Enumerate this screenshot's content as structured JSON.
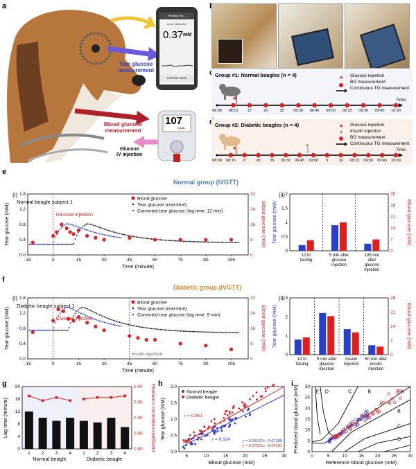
{
  "panel_letters": {
    "a": "a",
    "b": "b",
    "c": "c",
    "d": "d",
    "e": "e",
    "f": "f",
    "g": "g",
    "h": "h",
    "i": "i"
  },
  "panel_a": {
    "phone_title": "Reading Val...",
    "phone_header": "Auto Calibration",
    "phone_value": "0.37",
    "phone_unit": "mM",
    "phone_button": "EXPORT DATA",
    "tear_label_1": "Tear glucose",
    "tear_label_2": "measurement",
    "blood_label_1": "Blood glucose",
    "blood_label_2": "measurement",
    "glucose_label_1": "Glucose",
    "glucose_label_2": "IV injection",
    "meter_value": "107",
    "meter_unit": "mg/dL"
  },
  "timeline_c": {
    "title": "Group #1: Normal beagles (n = 4)",
    "legend": [
      "Glucose injection",
      "BG measurement",
      "Continuous TG measurement"
    ],
    "ticks": [
      "08:00",
      "08:15",
      "17",
      "20",
      "25",
      "06:30",
      "06:45",
      "09:00",
      "09:15",
      "09:30",
      "09:45",
      "10:00"
    ],
    "time_label": "Time"
  },
  "timeline_d": {
    "title": "Group #2: Diabetic beagles (n = 4)",
    "legend": [
      "Glucose injection",
      "Insulin injection",
      "BG measurement",
      "Continuous TG measurement"
    ],
    "ticks": [
      "08:00",
      "08:15",
      "17",
      "20",
      "25",
      "06:30",
      "06:45",
      "09:00",
      "5",
      "10",
      "09:15",
      "09:30",
      "09:45",
      "10:00"
    ],
    "time_label": "Time"
  },
  "colors": {
    "red": "#e02020",
    "blue": "#2a3bd6",
    "black": "#111111",
    "normal_title": "#4a7fc1",
    "diabetic_title": "#e08a2a",
    "bar_blue": "#2840c8",
    "bar_red": "#e01e1e"
  },
  "panel_e": {
    "sub_i": "(i)",
    "sub_ii": "(ii)",
    "group_title": "Normal group (IVGTT)",
    "subject": "Normal  beagle subject  1",
    "injection": "Glucose injection",
    "legend": [
      "Blood glucose",
      "Tear glucose (real-time)",
      "Corrected tear glucose (lag time: 12 min)"
    ],
    "xlabel": "Time (minute)",
    "ylabel_left": "Tear glucose (mM)",
    "ylabel_right": "Blood glucose (mM)",
    "bar_ylabel_left": "Tear glucose (mM)",
    "bar_ylabel_right": "Blood glucose (mM)",
    "bar_cats": [
      "12 hr fasting",
      "5 min after glucose injection",
      "105 min after glucose injection"
    ]
  },
  "panel_f": {
    "sub_i": "(i)",
    "sub_ii": "(ii)",
    "group_title": "Diabetic group (IVGTT)",
    "subject": "Diabetic  beagle subject  1",
    "injection": "Glucose injection",
    "insulin": "Insulin injection",
    "legend": [
      "Blood glucose",
      "Tear glucose (real-time)",
      "Corrected tear glucose (lag time: 9 min)"
    ],
    "xlabel": "Time (minute)",
    "ylabel_left": "Tear glucose (mM)",
    "ylabel_right": "Blood glucose (mM)",
    "bar_ylabel_left": "Tear glucose (mM)",
    "bar_ylabel_right": "Blood glucose (mM)",
    "bar_cats": [
      "12 hr fasting",
      "5 min after glucose injection",
      "Insulin injection",
      "60 min after insulin injection"
    ]
  },
  "panel_g": {
    "ylabel_left": "Lag time (minute)",
    "ylabel_right": "Pearson's correlation coefficient",
    "group1": "Normal beagle",
    "group2": "Diabetic beagle"
  },
  "panel_h": {
    "legend": [
      "Normal beagle",
      "Diabetic beagle"
    ],
    "r_red": "r = 0.961",
    "r_blue": "r = 0.924",
    "eq_blue": "y = 0.06037x - 0.07185",
    "eq_red": "y = 0.07621x - 0.04191",
    "xlabel": "Blood glucose (mM)",
    "ylabel": "Tear glucose (mM)"
  },
  "panel_i": {
    "xlabel": "Reference blood glucose (mM)",
    "ylabel": "Predicted blood glucose (mM)",
    "zones": [
      "E",
      "D",
      "C",
      "B",
      "A",
      "B",
      "C",
      "D"
    ]
  },
  "chart_data": [
    {
      "type": "scatter",
      "x": [
        -12,
        0,
        2,
        5,
        8,
        10,
        12,
        15,
        20,
        25,
        30,
        45,
        60,
        75,
        90,
        105
      ],
      "series": [
        {
          "name": "Blood glucose",
          "values": [
            6.5,
            10,
            12,
            16,
            14,
            12,
            11,
            13,
            10,
            9,
            8,
            9,
            8,
            8,
            8,
            8
          ]
        }
      ],
      "xlim": [
        -15,
        115
      ],
      "ylim_left": [
        0,
        1.6
      ],
      "ylim_right": [
        0,
        32
      ]
    },
    {
      "type": "bar",
      "categories": [
        "12 hr fasting",
        "5 min after glucose injection",
        "105 min after glucose injection"
      ],
      "series": [
        {
          "name": "Tear glucose",
          "values": [
            0.2,
            0.9,
            0.25
          ]
        },
        {
          "name": "Blood glucose",
          "values": [
            6.5,
            17.5,
            7
          ]
        }
      ],
      "ylim_left": [
        0,
        2
      ],
      "ylim_right": [
        0,
        35
      ]
    },
    {
      "type": "scatter",
      "x": [
        -12,
        0,
        3,
        6,
        9,
        12,
        15,
        20,
        25,
        30,
        45,
        50,
        55,
        60,
        75,
        90,
        105
      ],
      "series": [
        {
          "name": "Blood glucose",
          "values": [
            14,
            20,
            26,
            25,
            21,
            20,
            22,
            19,
            17,
            15,
            12,
            11,
            10,
            10,
            8,
            7,
            5
          ]
        }
      ],
      "xlim": [
        -15,
        115
      ],
      "ylim_left": [
        0,
        1.6
      ],
      "ylim_right": [
        0,
        32
      ]
    },
    {
      "type": "bar",
      "categories": [
        "12 hr fasting",
        "5 min after glucose injection",
        "Insulin injection",
        "60 min after insulin injection"
      ],
      "series": [
        {
          "name": "Tear glucose",
          "values": [
            0.8,
            2.2,
            1.35,
            0.5
          ]
        },
        {
          "name": "Blood glucose",
          "values": [
            8.5,
            19,
            11,
            4
          ]
        }
      ],
      "ylim_left": [
        0,
        3
      ],
      "ylim_right": [
        0,
        28
      ]
    },
    {
      "type": "bar",
      "categories": [
        "1",
        "2",
        "3",
        "4",
        "1",
        "2",
        "3",
        "4"
      ],
      "series": [
        {
          "name": "Lag time",
          "values": [
            12,
            10,
            9,
            10,
            9,
            8.5,
            10,
            7
          ]
        },
        {
          "name": "Pearson's correlation coefficient",
          "values": [
            0.97,
            0.955,
            0.965,
            0.955,
            0.96,
            0.965,
            0.965,
            0.97
          ]
        }
      ],
      "ylim_left": [
        0,
        20
      ],
      "ylim_right": [
        0.8,
        1.0
      ]
    },
    {
      "type": "scatter",
      "xlim": [
        3,
        30
      ],
      "ylim": [
        0,
        2.0
      ],
      "series": [
        {
          "name": "Normal beagle",
          "slope": 0.06037,
          "intercept": -0.07185,
          "x_range": [
            4,
            22
          ]
        },
        {
          "name": "Diabetic beagle",
          "slope": 0.07621,
          "intercept": -0.04191,
          "x_range": [
            4,
            28
          ]
        }
      ]
    },
    {
      "type": "scatter",
      "xlim": [
        0,
        30
      ],
      "ylim": [
        0,
        30
      ],
      "series": [
        {
          "name": "Normal beagle",
          "x_range": [
            4,
            18
          ]
        },
        {
          "name": "Diabetic beagle",
          "x_range": [
            5,
            27
          ]
        }
      ]
    }
  ]
}
